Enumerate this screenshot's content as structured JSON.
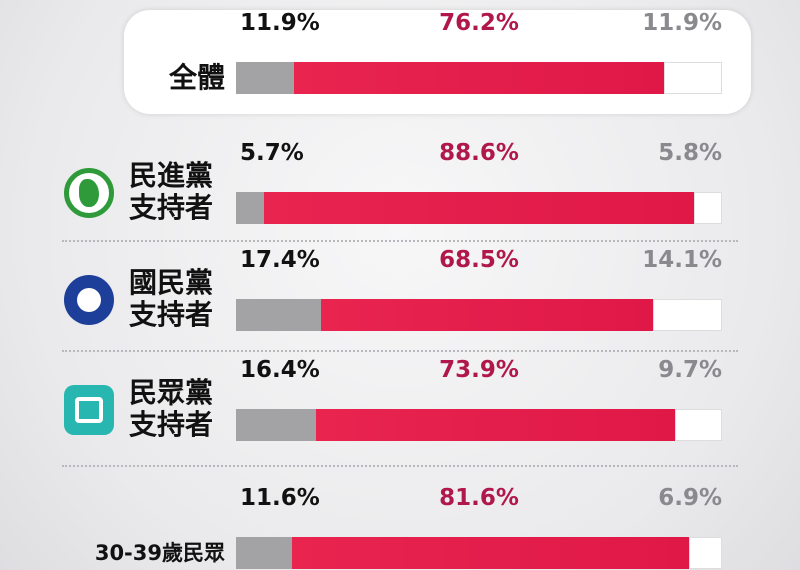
{
  "chart_data": {
    "type": "stacked-bar",
    "orientation": "horizontal",
    "categories": [
      "全體",
      "民進黨支持者",
      "國民黨支持者",
      "民眾黨支持者",
      "30-39歲民眾"
    ],
    "xlim": [
      0,
      100
    ],
    "series": [
      {
        "color": "#a3a3a6",
        "label_color": "#111111",
        "values": [
          11.9,
          5.7,
          17.4,
          16.4,
          11.6
        ],
        "value_labels": [
          "11.9%",
          "5.7%",
          "17.4%",
          "16.4%",
          "11.6%"
        ]
      },
      {
        "color": "#e8244f",
        "label_color": "#b0174a",
        "values": [
          76.2,
          88.6,
          68.5,
          73.9,
          81.6
        ],
        "value_labels": [
          "76.2%",
          "88.6%",
          "68.5%",
          "73.9%",
          "81.6%"
        ]
      },
      {
        "color": "#ffffff",
        "label_color": "#8a8a8e",
        "values": [
          11.9,
          5.8,
          14.1,
          9.7,
          6.9
        ],
        "value_labels": [
          "11.9%",
          "5.8%",
          "14.1%",
          "9.7%",
          "6.9%"
        ]
      }
    ]
  }
}
